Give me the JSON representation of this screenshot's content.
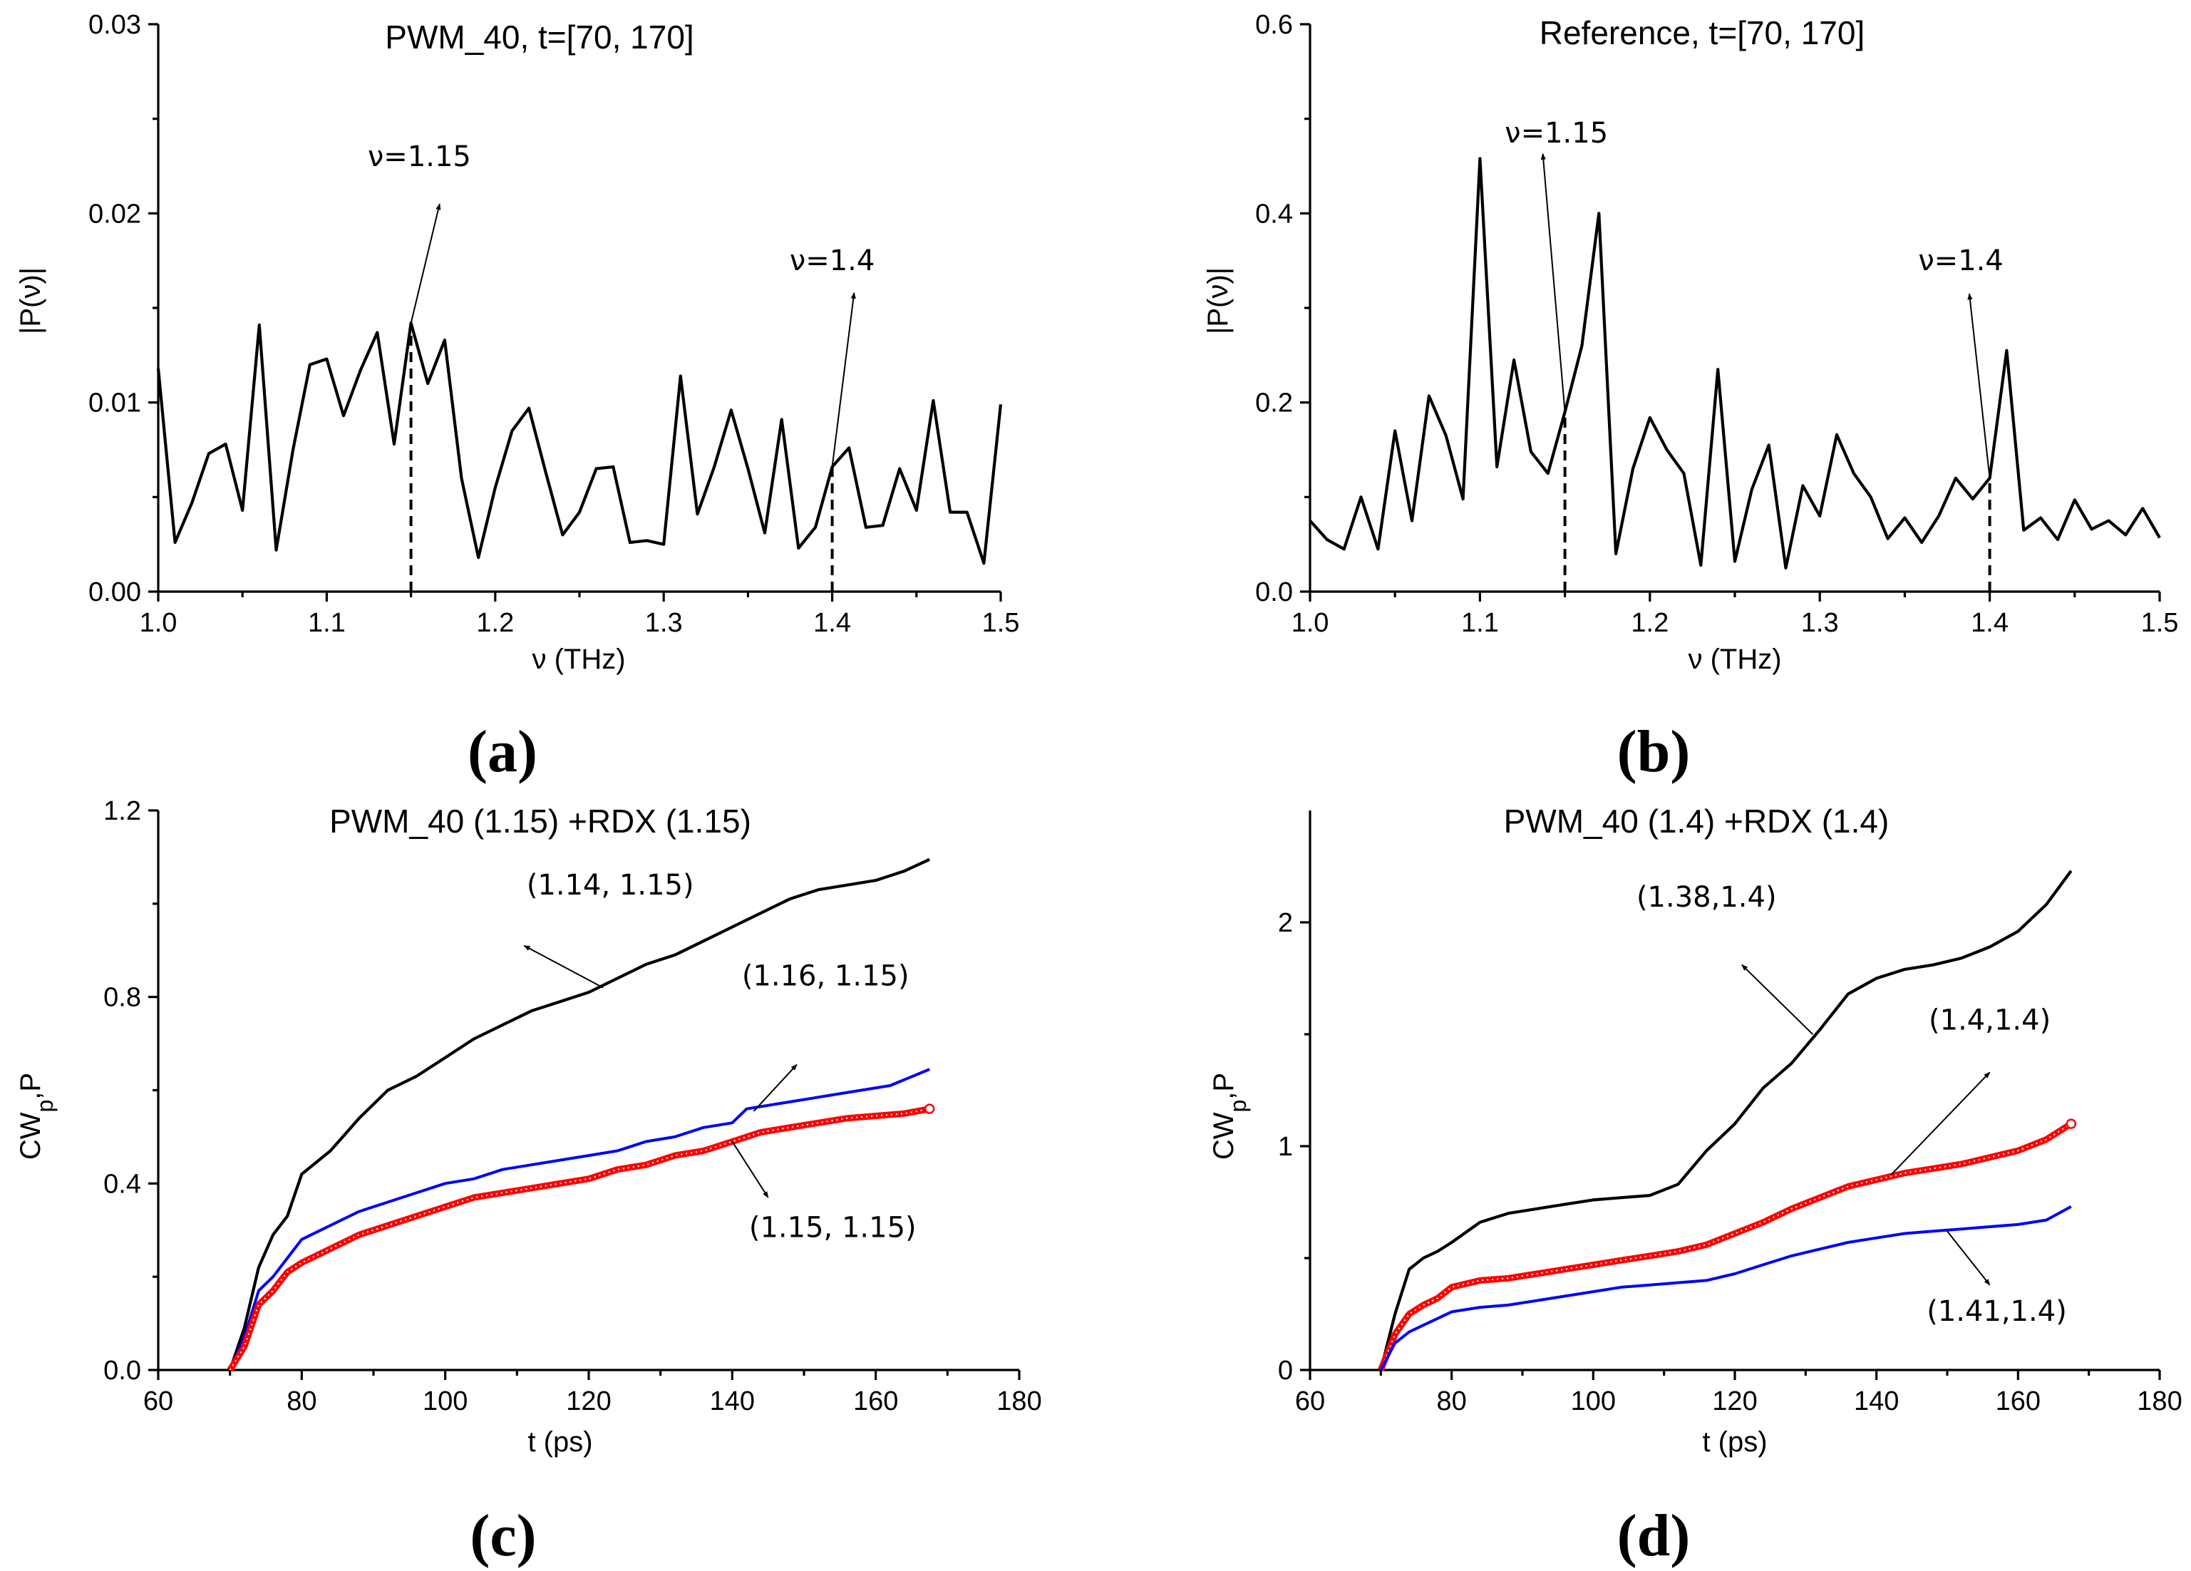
{
  "chart_data": [
    {
      "id": "a",
      "type": "line",
      "panel_label": "(a)",
      "title": "PWM_40, t=[70, 170]",
      "xlabel": "ν (THz)",
      "ylabel": "|P(ν)|",
      "xlim": [
        1.0,
        1.5
      ],
      "ylim": [
        0,
        0.03
      ],
      "xticks": [
        "1.0",
        "1.1",
        "1.2",
        "1.3",
        "1.4",
        "1.5"
      ],
      "yticks": [
        "0.00",
        "0.01",
        "0.02",
        "0.03"
      ],
      "series": [
        {
          "name": "spectrum",
          "color": "#000000",
          "x": [
            1.0,
            1.01,
            1.02,
            1.03,
            1.04,
            1.05,
            1.06,
            1.07,
            1.08,
            1.09,
            1.1,
            1.11,
            1.12,
            1.13,
            1.14,
            1.15,
            1.16,
            1.17,
            1.18,
            1.19,
            1.2,
            1.21,
            1.22,
            1.23,
            1.24,
            1.25,
            1.26,
            1.27,
            1.28,
            1.29,
            1.3,
            1.31,
            1.32,
            1.33,
            1.34,
            1.35,
            1.36,
            1.37,
            1.38,
            1.39,
            1.4,
            1.41,
            1.42,
            1.43,
            1.44,
            1.45,
            1.46,
            1.47,
            1.48,
            1.49,
            1.5
          ],
          "values": [
            0.0118,
            0.0026,
            0.0047,
            0.0073,
            0.0078,
            0.0043,
            0.0141,
            0.0022,
            0.0075,
            0.012,
            0.0123,
            0.0093,
            0.0117,
            0.0137,
            0.0078,
            0.0142,
            0.011,
            0.0133,
            0.006,
            0.0018,
            0.0055,
            0.0085,
            0.0097,
            0.0063,
            0.003,
            0.0042,
            0.0065,
            0.0066,
            0.0026,
            0.0027,
            0.0025,
            0.0114,
            0.0041,
            0.0066,
            0.0096,
            0.0065,
            0.0031,
            0.0091,
            0.0023,
            0.0034,
            0.0066,
            0.0076,
            0.0034,
            0.0035,
            0.0065,
            0.0043,
            0.0101,
            0.0042,
            0.0042,
            0.0015,
            0.0099
          ]
        }
      ],
      "markers": [
        {
          "label": "ν=1.15",
          "x": 1.15,
          "y": 0.0142,
          "text_x": 1.155,
          "text_y": 0.0225,
          "arrow_to_x": 1.167,
          "arrow_to_y": 0.0205
        },
        {
          "label": "ν=1.4",
          "x": 1.4,
          "y": 0.0066,
          "text_x": 1.4,
          "text_y": 0.017,
          "arrow_to_x": 1.413,
          "arrow_to_y": 0.0158
        }
      ]
    },
    {
      "id": "b",
      "type": "line",
      "panel_label": "(b)",
      "title": "Reference, t=[70, 170]",
      "xlabel": "ν (THz)",
      "ylabel": "|P(ν)|",
      "xlim": [
        1.0,
        1.5
      ],
      "ylim": [
        0,
        0.6
      ],
      "xticks": [
        "1.0",
        "1.1",
        "1.2",
        "1.3",
        "1.4",
        "1.5"
      ],
      "yticks": [
        "0.0",
        "0.2",
        "0.4",
        "0.6"
      ],
      "series": [
        {
          "name": "spectrum",
          "color": "#000000",
          "x": [
            1.0,
            1.01,
            1.02,
            1.03,
            1.04,
            1.05,
            1.06,
            1.07,
            1.08,
            1.09,
            1.1,
            1.11,
            1.12,
            1.13,
            1.14,
            1.15,
            1.16,
            1.17,
            1.18,
            1.19,
            1.2,
            1.21,
            1.22,
            1.23,
            1.24,
            1.25,
            1.26,
            1.27,
            1.28,
            1.29,
            1.3,
            1.31,
            1.32,
            1.33,
            1.34,
            1.35,
            1.36,
            1.37,
            1.38,
            1.39,
            1.4,
            1.41,
            1.42,
            1.43,
            1.44,
            1.45,
            1.46,
            1.47,
            1.48,
            1.49,
            1.5
          ],
          "values": [
            0.075,
            0.055,
            0.045,
            0.1,
            0.045,
            0.17,
            0.075,
            0.207,
            0.165,
            0.098,
            0.458,
            0.132,
            0.245,
            0.148,
            0.125,
            0.19,
            0.26,
            0.4,
            0.04,
            0.13,
            0.184,
            0.15,
            0.125,
            0.028,
            0.235,
            0.032,
            0.108,
            0.155,
            0.025,
            0.112,
            0.08,
            0.166,
            0.125,
            0.1,
            0.056,
            0.078,
            0.052,
            0.08,
            0.12,
            0.098,
            0.12,
            0.255,
            0.065,
            0.078,
            0.055,
            0.097,
            0.066,
            0.075,
            0.06,
            0.088,
            0.057
          ]
        }
      ],
      "markers": [
        {
          "label": "ν=1.15",
          "x": 1.15,
          "y": 0.19,
          "text_x": 1.145,
          "text_y": 0.475,
          "arrow_to_x": 1.137,
          "arrow_to_y": 0.463
        },
        {
          "label": "ν=1.4",
          "x": 1.4,
          "y": 0.12,
          "text_x": 1.383,
          "text_y": 0.34,
          "arrow_to_x": 1.388,
          "arrow_to_y": 0.315
        }
      ]
    },
    {
      "id": "c",
      "type": "line",
      "panel_label": "(c)",
      "title": "PWM_40 (1.15)  +RDX (1.15)",
      "xlabel": "t (ps)",
      "ylabel_main": "CW",
      "ylabel_sub": "p",
      "ylabel_tail": ",P",
      "xlim": [
        60,
        180
      ],
      "ylim": [
        0,
        1.2
      ],
      "xticks": [
        "60",
        "80",
        "100",
        "120",
        "140",
        "160",
        "180"
      ],
      "yticks": [
        "0.0",
        "0.4",
        "0.8",
        "1.2"
      ],
      "series": [
        {
          "name": "(1.14, 1.15)",
          "color": "#000000",
          "x": [
            70,
            72,
            74,
            76,
            78,
            80,
            84,
            88,
            92,
            96,
            100,
            104,
            108,
            112,
            116,
            120,
            124,
            128,
            132,
            136,
            140,
            144,
            148,
            152,
            156,
            160,
            164,
            167.5
          ],
          "values": [
            0,
            0.09,
            0.22,
            0.29,
            0.33,
            0.42,
            0.47,
            0.54,
            0.6,
            0.63,
            0.67,
            0.71,
            0.74,
            0.77,
            0.79,
            0.81,
            0.84,
            0.87,
            0.89,
            0.92,
            0.95,
            0.98,
            1.01,
            1.03,
            1.04,
            1.05,
            1.07,
            1.095
          ]
        },
        {
          "name": "(1.16, 1.15)",
          "color": "#0000ff",
          "x": [
            70,
            72,
            74,
            76,
            78,
            80,
            84,
            88,
            92,
            96,
            100,
            104,
            108,
            112,
            116,
            120,
            124,
            128,
            132,
            136,
            140,
            142,
            146,
            150,
            154,
            158,
            162,
            167.5
          ],
          "values": [
            0,
            0.07,
            0.17,
            0.2,
            0.24,
            0.28,
            0.31,
            0.34,
            0.36,
            0.38,
            0.4,
            0.41,
            0.43,
            0.44,
            0.45,
            0.46,
            0.47,
            0.49,
            0.5,
            0.52,
            0.53,
            0.56,
            0.57,
            0.58,
            0.59,
            0.6,
            0.61,
            0.645
          ]
        },
        {
          "name": "(1.15, 1.15)",
          "color": "#ff0000",
          "x": [
            70,
            72,
            74,
            76,
            78,
            80,
            84,
            88,
            92,
            96,
            100,
            104,
            108,
            112,
            116,
            120,
            124,
            128,
            132,
            136,
            140,
            144,
            148,
            152,
            156,
            160,
            164,
            167.5
          ],
          "values": [
            0,
            0.05,
            0.14,
            0.17,
            0.21,
            0.23,
            0.26,
            0.29,
            0.31,
            0.33,
            0.35,
            0.37,
            0.38,
            0.39,
            0.4,
            0.41,
            0.43,
            0.44,
            0.46,
            0.47,
            0.49,
            0.51,
            0.52,
            0.53,
            0.54,
            0.545,
            0.55,
            0.56
          ]
        }
      ],
      "annotations": [
        {
          "label": "(1.14, 1.15)",
          "text_x": 123,
          "text_y": 1.02,
          "arrow_from_x": 122,
          "arrow_from_y": 0.82,
          "arrow_to_x": 111,
          "arrow_to_y": 0.91
        },
        {
          "label": "(1.16, 1.15)",
          "text_x": 153,
          "text_y": 0.825,
          "arrow_from_x": 143,
          "arrow_from_y": 0.555,
          "arrow_to_x": 149,
          "arrow_to_y": 0.655
        },
        {
          "label": "(1.15, 1.15)",
          "text_x": 154,
          "text_y": 0.285,
          "arrow_from_x": 140,
          "arrow_from_y": 0.49,
          "arrow_to_x": 145,
          "arrow_to_y": 0.37
        }
      ]
    },
    {
      "id": "d",
      "type": "line",
      "panel_label": "(d)",
      "title": "PWM_40 (1.4) +RDX (1.4)",
      "xlabel": "t (ps)",
      "ylabel_main": "CW",
      "ylabel_sub": "p",
      "ylabel_tail": ",P",
      "xlim": [
        60,
        180
      ],
      "ylim": [
        0,
        2.5
      ],
      "xticks": [
        "60",
        "80",
        "100",
        "120",
        "140",
        "160",
        "180"
      ],
      "yticks": [
        "0",
        "1",
        "2"
      ],
      "series": [
        {
          "name": "(1.38,1.4)",
          "color": "#000000",
          "x": [
            70,
            72,
            74,
            76,
            78,
            80,
            84,
            88,
            92,
            96,
            100,
            104,
            108,
            112,
            116,
            120,
            124,
            128,
            132,
            136,
            140,
            144,
            148,
            152,
            156,
            160,
            164,
            167.5
          ],
          "values": [
            0,
            0.25,
            0.45,
            0.5,
            0.53,
            0.57,
            0.66,
            0.7,
            0.72,
            0.74,
            0.76,
            0.77,
            0.78,
            0.83,
            0.98,
            1.1,
            1.26,
            1.37,
            1.52,
            1.68,
            1.75,
            1.79,
            1.81,
            1.84,
            1.89,
            1.96,
            2.08,
            2.23
          ]
        },
        {
          "name": "(1.4,1.4)",
          "color": "#ff0000",
          "x": [
            70,
            72,
            74,
            76,
            78,
            80,
            84,
            88,
            92,
            96,
            100,
            104,
            108,
            112,
            116,
            120,
            124,
            128,
            132,
            136,
            140,
            144,
            148,
            152,
            156,
            160,
            164,
            167.5
          ],
          "values": [
            0,
            0.16,
            0.25,
            0.29,
            0.32,
            0.37,
            0.4,
            0.41,
            0.43,
            0.45,
            0.47,
            0.49,
            0.51,
            0.53,
            0.56,
            0.61,
            0.66,
            0.72,
            0.77,
            0.82,
            0.85,
            0.88,
            0.9,
            0.92,
            0.95,
            0.98,
            1.03,
            1.1
          ]
        },
        {
          "name": "(1.41,1.4)",
          "color": "#0000ff",
          "x": [
            70,
            72,
            74,
            76,
            78,
            80,
            84,
            88,
            92,
            96,
            100,
            104,
            108,
            112,
            116,
            120,
            124,
            128,
            132,
            136,
            140,
            144,
            148,
            152,
            156,
            160,
            164,
            167.5
          ],
          "values": [
            0,
            0.12,
            0.17,
            0.2,
            0.23,
            0.26,
            0.28,
            0.29,
            0.31,
            0.33,
            0.35,
            0.37,
            0.38,
            0.39,
            0.4,
            0.43,
            0.47,
            0.51,
            0.54,
            0.57,
            0.59,
            0.61,
            0.62,
            0.63,
            0.64,
            0.65,
            0.67,
            0.73
          ]
        }
      ],
      "annotations": [
        {
          "label": "(1.38,1.4)",
          "text_x": 116,
          "text_y": 2.07,
          "arrow_from_x": 131,
          "arrow_from_y": 1.5,
          "arrow_to_x": 121,
          "arrow_to_y": 1.81
        },
        {
          "label": "(1.4,1.4)",
          "text_x": 156,
          "text_y": 1.52,
          "arrow_from_x": 142,
          "arrow_from_y": 0.87,
          "arrow_to_x": 156,
          "arrow_to_y": 1.33
        },
        {
          "label": "(1.41,1.4)",
          "text_x": 157,
          "text_y": 0.22,
          "arrow_from_x": 150,
          "arrow_from_y": 0.62,
          "arrow_to_x": 156,
          "arrow_to_y": 0.38
        }
      ]
    }
  ]
}
